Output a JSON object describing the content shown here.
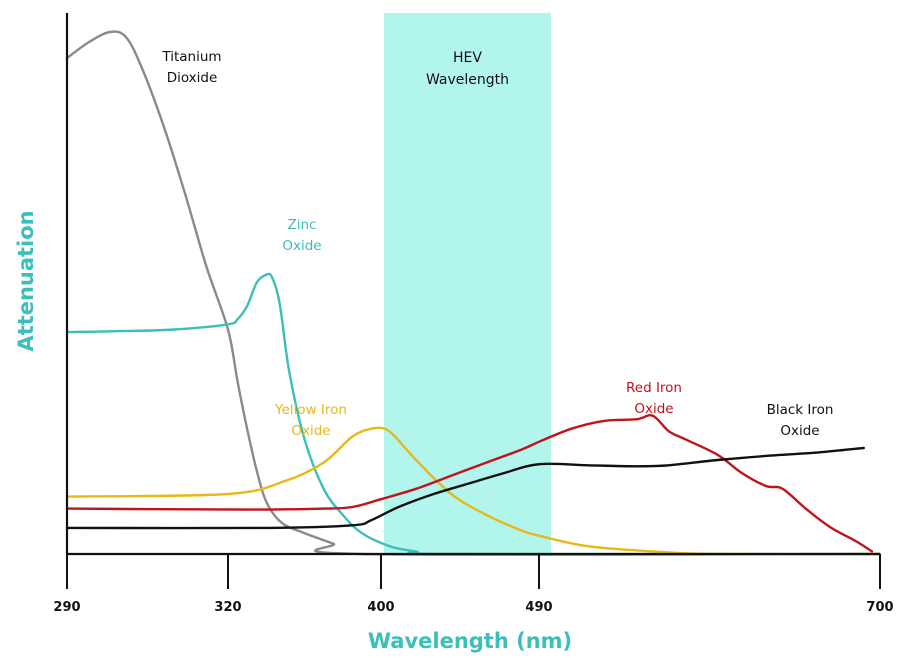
{
  "chart_data": {
    "type": "line",
    "xlabel": "Wavelength (nm)",
    "ylabel": "Attenuation",
    "x_ticks": [
      "290",
      "320",
      "400",
      "490",
      "700"
    ],
    "grid": false,
    "band": {
      "label_line1": "HEV",
      "label_line2": "Wavelength",
      "x_start": 400,
      "x_end": 490,
      "color": "#b2f5ec"
    },
    "colors": {
      "axis": "#111111",
      "title": "#3bbfb8"
    },
    "series": [
      {
        "name": "Titanium Dioxide",
        "label_lines": [
          "Titanium",
          "Dioxide"
        ],
        "color": "#8a8a8a",
        "points": [
          [
            290,
            0.95
          ],
          [
            294,
            0.98
          ],
          [
            298,
            1.0
          ],
          [
            301,
            0.99
          ],
          [
            304,
            0.93
          ],
          [
            308,
            0.82
          ],
          [
            312,
            0.69
          ],
          [
            316,
            0.55
          ],
          [
            320,
            0.43
          ],
          [
            325,
            0.33
          ],
          [
            330,
            0.24
          ],
          [
            335,
            0.16
          ],
          [
            340,
            0.1
          ],
          [
            348,
            0.06
          ],
          [
            360,
            0.04
          ],
          [
            375,
            0.02
          ],
          [
            390,
            0.0
          ],
          [
            700,
            0.0
          ]
        ]
      },
      {
        "name": "Zinc Oxide",
        "label_lines": [
          "Zinc",
          "Oxide"
        ],
        "color": "#3bbfb8",
        "points": [
          [
            290,
            0.425
          ],
          [
            300,
            0.427
          ],
          [
            310,
            0.43
          ],
          [
            320,
            0.44
          ],
          [
            325,
            0.45
          ],
          [
            330,
            0.475
          ],
          [
            335,
            0.52
          ],
          [
            340,
            0.535
          ],
          [
            343,
            0.53
          ],
          [
            347,
            0.48
          ],
          [
            352,
            0.35
          ],
          [
            360,
            0.22
          ],
          [
            370,
            0.125
          ],
          [
            380,
            0.075
          ],
          [
            390,
            0.04
          ],
          [
            405,
            0.015
          ],
          [
            420,
            0.005
          ],
          [
            440,
            0.0
          ],
          [
            700,
            0.0
          ]
        ]
      },
      {
        "name": "Yellow Iron Oxide",
        "label_lines": [
          "Yellow Iron",
          "Oxide"
        ],
        "color": "#e8b81a",
        "points": [
          [
            290,
            0.11
          ],
          [
            320,
            0.115
          ],
          [
            350,
            0.14
          ],
          [
            370,
            0.175
          ],
          [
            385,
            0.225
          ],
          [
            395,
            0.24
          ],
          [
            402,
            0.24
          ],
          [
            408,
            0.225
          ],
          [
            420,
            0.18
          ],
          [
            440,
            0.115
          ],
          [
            460,
            0.075
          ],
          [
            480,
            0.045
          ],
          [
            490,
            0.035
          ],
          [
            520,
            0.015
          ],
          [
            560,
            0.005
          ],
          [
            600,
            0.0
          ],
          [
            700,
            0.0
          ]
        ]
      },
      {
        "name": "Red Iron Oxide",
        "label_lines": [
          "Red Iron",
          "Oxide"
        ],
        "color": "#c0141c",
        "points": [
          [
            290,
            0.087
          ],
          [
            330,
            0.085
          ],
          [
            370,
            0.087
          ],
          [
            385,
            0.09
          ],
          [
            400,
            0.105
          ],
          [
            420,
            0.125
          ],
          [
            440,
            0.15
          ],
          [
            460,
            0.175
          ],
          [
            480,
            0.2
          ],
          [
            490,
            0.215
          ],
          [
            510,
            0.24
          ],
          [
            530,
            0.255
          ],
          [
            550,
            0.258
          ],
          [
            560,
            0.265
          ],
          [
            570,
            0.235
          ],
          [
            580,
            0.22
          ],
          [
            600,
            0.19
          ],
          [
            615,
            0.155
          ],
          [
            630,
            0.13
          ],
          [
            640,
            0.125
          ],
          [
            655,
            0.085
          ],
          [
            670,
            0.05
          ],
          [
            685,
            0.025
          ],
          [
            695,
            0.005
          ]
        ]
      },
      {
        "name": "Black Iron Oxide",
        "label_lines": [
          "Black Iron",
          "Oxide"
        ],
        "color": "#111111",
        "points": [
          [
            290,
            0.05
          ],
          [
            340,
            0.05
          ],
          [
            385,
            0.055
          ],
          [
            395,
            0.065
          ],
          [
            410,
            0.09
          ],
          [
            430,
            0.115
          ],
          [
            450,
            0.135
          ],
          [
            470,
            0.155
          ],
          [
            490,
            0.172
          ],
          [
            520,
            0.17
          ],
          [
            550,
            0.168
          ],
          [
            570,
            0.17
          ],
          [
            600,
            0.18
          ],
          [
            630,
            0.188
          ],
          [
            660,
            0.194
          ],
          [
            690,
            0.203
          ]
        ]
      }
    ]
  }
}
